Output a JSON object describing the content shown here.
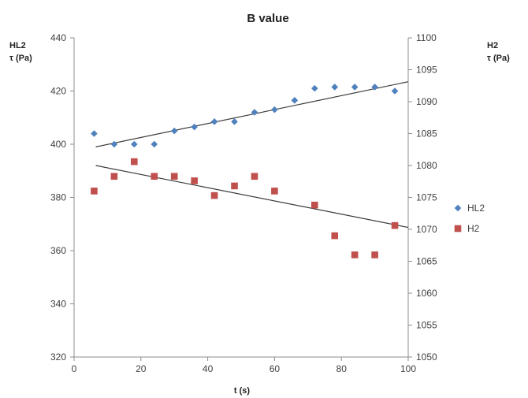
{
  "chart_data": {
    "type": "scatter",
    "title": "B value",
    "xlabel": "t (s)",
    "xlim": [
      0,
      100
    ],
    "xticks": [
      0,
      20,
      40,
      60,
      80,
      100
    ],
    "y_left": {
      "label_line1": "HL2",
      "label_line2": "τ (Pa)",
      "lim": [
        320,
        440
      ],
      "ticks": [
        320,
        340,
        360,
        380,
        400,
        420,
        440
      ]
    },
    "y_right": {
      "label_line1": "H2",
      "label_line2": "τ (Pa)",
      "lim": [
        1050,
        1100
      ],
      "ticks": [
        1050,
        1055,
        1060,
        1065,
        1070,
        1075,
        1080,
        1085,
        1090,
        1095,
        1100
      ]
    },
    "legend_position": "right",
    "grid": false,
    "series": [
      {
        "name": "HL2",
        "axis": "left",
        "marker": "diamond",
        "color": "#4f81bd",
        "x": [
          6,
          12,
          18,
          24,
          30,
          36,
          42,
          48,
          54,
          60,
          66,
          72,
          78,
          84,
          90,
          96
        ],
        "y": [
          404,
          400,
          400,
          400,
          405,
          406.5,
          408.5,
          408.5,
          412,
          413,
          416.5,
          421,
          421.5,
          421.5,
          421.5,
          420
        ],
        "trendline": {
          "x": [
            6.5,
            100
          ],
          "y": [
            399,
            423.5
          ]
        }
      },
      {
        "name": "H2",
        "axis": "right",
        "marker": "square",
        "color": "#c0504d",
        "x": [
          6,
          12,
          18,
          24,
          30,
          36,
          42,
          48,
          54,
          60,
          72,
          78,
          84,
          90,
          96
        ],
        "y": [
          1076,
          1078.3,
          1080.6,
          1078.3,
          1078.3,
          1077.6,
          1075.3,
          1076.8,
          1078.3,
          1076,
          1073.8,
          1069,
          1066,
          1066,
          1070.6
        ],
        "trendline": {
          "x": [
            6.5,
            100
          ],
          "y": [
            1080,
            1070.3
          ]
        }
      }
    ]
  }
}
